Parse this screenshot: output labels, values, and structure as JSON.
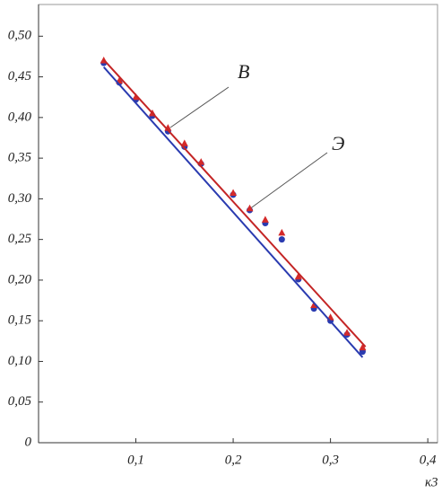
{
  "chart_data": {
    "type": "scatter",
    "xlabel": "к3",
    "annotations": [
      "В",
      "Э"
    ],
    "xlim": [
      0,
      0.41
    ],
    "ylim": [
      0,
      0.539
    ],
    "xticks": [
      {
        "value": 0.1,
        "label": "0,1"
      },
      {
        "value": 0.2,
        "label": "0,2"
      },
      {
        "value": 0.3,
        "label": "0,3"
      },
      {
        "value": 0.4,
        "label": "0,4"
      }
    ],
    "yticks": [
      0,
      {
        "value": 0.05,
        "label": "0,05"
      },
      {
        "value": 0.1,
        "label": "0,10"
      },
      {
        "value": 0.15,
        "label": "0,15"
      },
      {
        "value": 0.2,
        "label": "0,20"
      },
      {
        "value": 0.25,
        "label": "0,25"
      },
      {
        "value": 0.3,
        "label": "0,30"
      },
      {
        "value": 0.35,
        "label": "0,35"
      },
      {
        "value": 0.4,
        "label": "0,40"
      },
      {
        "value": 0.45,
        "label": "0,45"
      },
      {
        "value": 0.5,
        "label": "0,50"
      }
    ],
    "series": [
      {
        "kind": "circle",
        "color": "#2a3bb0",
        "x": [
          0.067,
          0.083,
          0.1,
          0.117,
          0.133,
          0.15,
          0.167,
          0.2,
          0.217,
          0.233,
          0.25,
          0.267,
          0.283,
          0.3,
          0.317,
          0.333
        ],
        "values": [
          0.467,
          0.443,
          0.422,
          0.402,
          0.383,
          0.364,
          0.343,
          0.305,
          0.286,
          0.27,
          0.25,
          0.201,
          0.165,
          0.15,
          0.133,
          0.112
        ]
      },
      {
        "kind": "triangle",
        "color": "#d42a2a",
        "x": [
          0.067,
          0.083,
          0.1,
          0.117,
          0.133,
          0.15,
          0.167,
          0.2,
          0.217,
          0.233,
          0.25,
          0.267,
          0.283,
          0.3,
          0.317,
          0.333
        ],
        "values": [
          0.47,
          0.445,
          0.425,
          0.405,
          0.387,
          0.368,
          0.345,
          0.307,
          0.288,
          0.274,
          0.258,
          0.204,
          0.169,
          0.154,
          0.135,
          0.117
        ]
      },
      {
        "kind": "line",
        "color": "#2a3bb0",
        "x": [
          0.067,
          0.333
        ],
        "values": [
          0.462,
          0.105
        ]
      },
      {
        "kind": "line",
        "color": "#c42525",
        "x": [
          0.067,
          0.336
        ],
        "values": [
          0.471,
          0.118
        ]
      }
    ]
  }
}
